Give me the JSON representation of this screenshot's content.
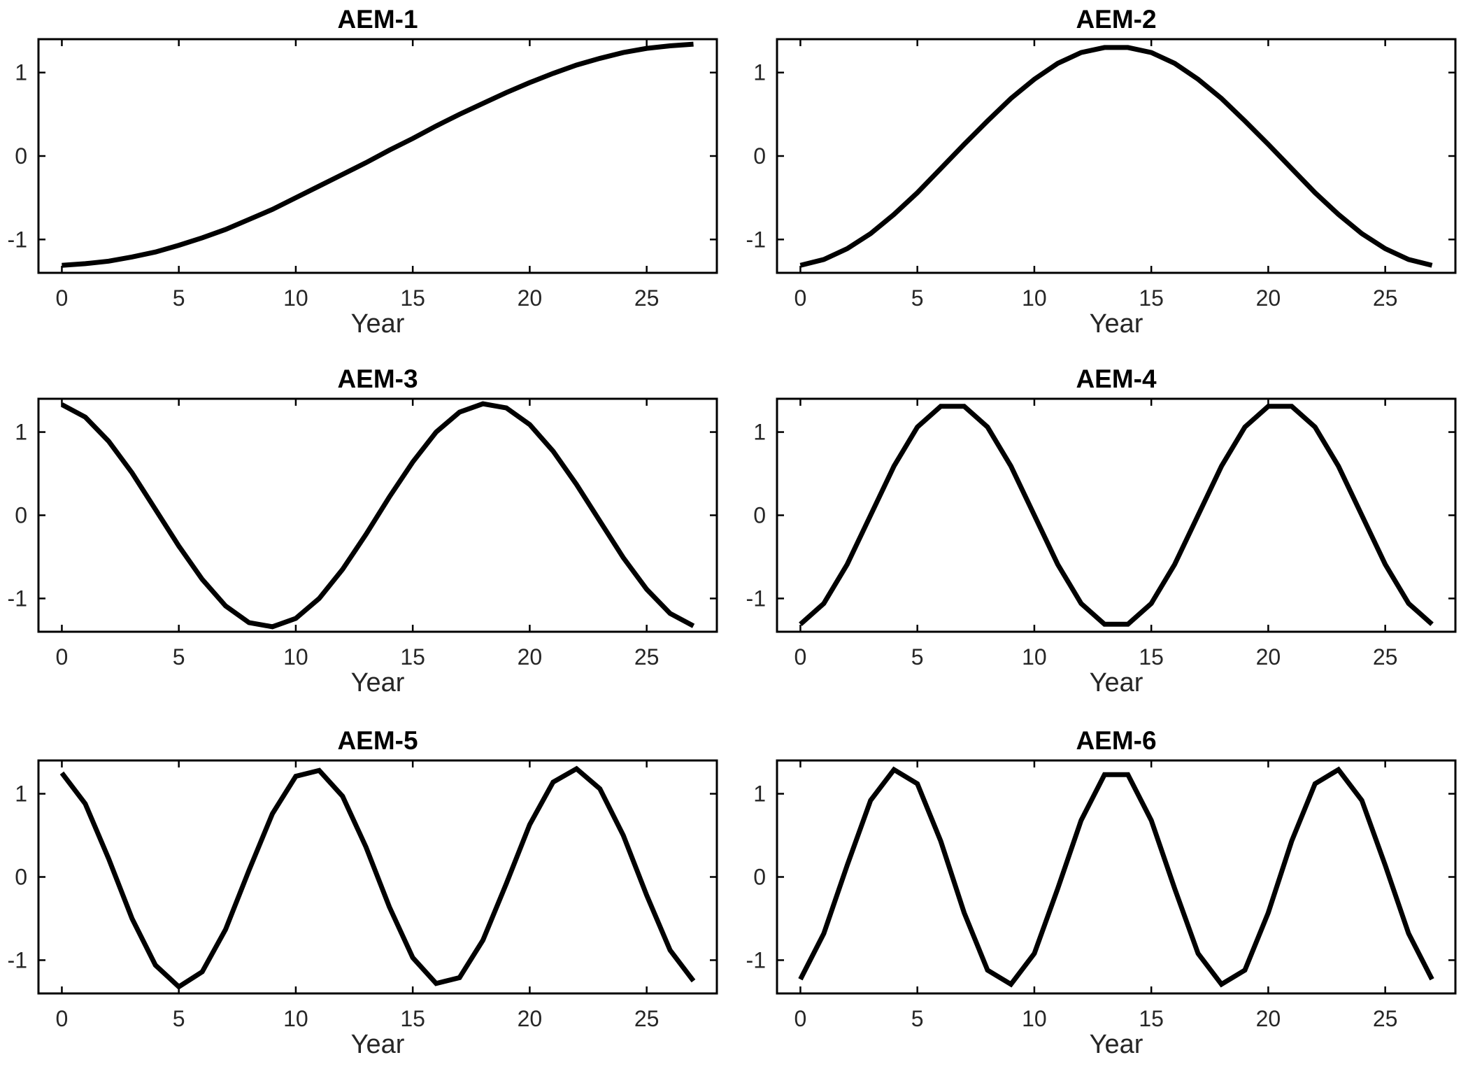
{
  "chart_data": [
    {
      "type": "line",
      "title": "AEM-1",
      "xlabel": "Year",
      "ylabel": "",
      "xlim": [
        -1,
        28
      ],
      "ylim": [
        -1.4,
        1.4
      ],
      "xticks": [
        0,
        5,
        10,
        15,
        20,
        25
      ],
      "xticklabels": [
        "0",
        "5",
        "10",
        "15",
        "20",
        "25"
      ],
      "yticks": [
        -1,
        0,
        1
      ],
      "yticklabels": [
        "-1",
        "0",
        "1"
      ],
      "grid": false,
      "x": [
        0,
        1,
        2,
        3,
        4,
        5,
        6,
        7,
        8,
        9,
        10,
        11,
        12,
        13,
        14,
        15,
        16,
        17,
        18,
        19,
        20,
        21,
        22,
        23,
        24,
        25,
        26,
        27
      ],
      "values": [
        -1.31,
        -1.29,
        -1.26,
        -1.21,
        -1.15,
        -1.07,
        -0.98,
        -0.88,
        -0.76,
        -0.64,
        -0.5,
        -0.36,
        -0.22,
        -0.08,
        0.07,
        0.21,
        0.36,
        0.5,
        0.63,
        0.76,
        0.88,
        0.99,
        1.09,
        1.17,
        1.24,
        1.29,
        1.32,
        1.34
      ]
    },
    {
      "type": "line",
      "title": "AEM-2",
      "xlabel": "Year",
      "ylabel": "",
      "xlim": [
        -1,
        28
      ],
      "ylim": [
        -1.4,
        1.4
      ],
      "xticks": [
        0,
        5,
        10,
        15,
        20,
        25
      ],
      "xticklabels": [
        "0",
        "5",
        "10",
        "15",
        "20",
        "25"
      ],
      "yticks": [
        -1,
        0,
        1
      ],
      "yticklabels": [
        "-1",
        "0",
        "1"
      ],
      "grid": false,
      "x": [
        0,
        1,
        2,
        3,
        4,
        5,
        6,
        7,
        8,
        9,
        10,
        11,
        12,
        13,
        14,
        15,
        16,
        17,
        18,
        19,
        20,
        21,
        22,
        23,
        24,
        25,
        26,
        27
      ],
      "values": [
        -1.31,
        -1.24,
        -1.11,
        -0.93,
        -0.7,
        -0.44,
        -0.15,
        0.14,
        0.42,
        0.69,
        0.92,
        1.11,
        1.24,
        1.3,
        1.3,
        1.24,
        1.11,
        0.92,
        0.69,
        0.42,
        0.14,
        -0.15,
        -0.44,
        -0.7,
        -0.93,
        -1.11,
        -1.24,
        -1.31
      ]
    },
    {
      "type": "line",
      "title": "AEM-3",
      "xlabel": "Year",
      "ylabel": "",
      "xlim": [
        -1,
        28
      ],
      "ylim": [
        -1.4,
        1.4
      ],
      "xticks": [
        0,
        5,
        10,
        15,
        20,
        25
      ],
      "xticklabels": [
        "0",
        "5",
        "10",
        "15",
        "20",
        "25"
      ],
      "yticks": [
        -1,
        0,
        1
      ],
      "yticklabels": [
        "-1",
        "0",
        "1"
      ],
      "grid": false,
      "x": [
        0,
        1,
        2,
        3,
        4,
        5,
        6,
        7,
        8,
        9,
        10,
        11,
        12,
        13,
        14,
        15,
        16,
        17,
        18,
        19,
        20,
        21,
        22,
        23,
        24,
        25,
        26,
        27
      ],
      "values": [
        1.33,
        1.18,
        0.89,
        0.51,
        0.07,
        -0.37,
        -0.77,
        -1.09,
        -1.29,
        -1.34,
        -1.24,
        -1.0,
        -0.65,
        -0.23,
        0.22,
        0.64,
        1.0,
        1.24,
        1.34,
        1.29,
        1.09,
        0.77,
        0.37,
        -0.07,
        -0.51,
        -0.89,
        -1.18,
        -1.33
      ]
    },
    {
      "type": "line",
      "title": "AEM-4",
      "xlabel": "Year",
      "ylabel": "",
      "xlim": [
        -1,
        28
      ],
      "ylim": [
        -1.4,
        1.4
      ],
      "xticks": [
        0,
        5,
        10,
        15,
        20,
        25
      ],
      "xticklabels": [
        "0",
        "5",
        "10",
        "15",
        "20",
        "25"
      ],
      "yticks": [
        -1,
        0,
        1
      ],
      "yticklabels": [
        "-1",
        "0",
        "1"
      ],
      "grid": false,
      "x": [
        0,
        1,
        2,
        3,
        4,
        5,
        6,
        7,
        8,
        9,
        10,
        11,
        12,
        13,
        14,
        15,
        16,
        17,
        18,
        19,
        20,
        21,
        22,
        23,
        24,
        25,
        26,
        27
      ],
      "values": [
        -1.31,
        -1.06,
        -0.59,
        0.0,
        0.59,
        1.06,
        1.31,
        1.31,
        1.06,
        0.59,
        0.0,
        -0.59,
        -1.06,
        -1.31,
        -1.31,
        -1.06,
        -0.59,
        0.0,
        0.59,
        1.06,
        1.31,
        1.31,
        1.06,
        0.59,
        0.0,
        -0.59,
        -1.06,
        -1.31
      ]
    },
    {
      "type": "line",
      "title": "AEM-5",
      "xlabel": "Year",
      "ylabel": "",
      "xlim": [
        -1,
        28
      ],
      "ylim": [
        -1.4,
        1.4
      ],
      "xticks": [
        0,
        5,
        10,
        15,
        20,
        25
      ],
      "xticklabels": [
        "0",
        "5",
        "10",
        "15",
        "20",
        "25"
      ],
      "yticks": [
        -1,
        0,
        1
      ],
      "yticklabels": [
        "-1",
        "0",
        "1"
      ],
      "grid": false,
      "x": [
        0,
        1,
        2,
        3,
        4,
        5,
        6,
        7,
        8,
        9,
        10,
        11,
        12,
        13,
        14,
        15,
        16,
        17,
        18,
        19,
        20,
        21,
        22,
        23,
        24,
        25,
        26,
        27
      ],
      "values": [
        1.25,
        0.88,
        0.22,
        -0.5,
        -1.06,
        -1.32,
        -1.14,
        -0.63,
        0.08,
        0.76,
        1.21,
        1.28,
        0.97,
        0.36,
        -0.36,
        -0.97,
        -1.28,
        -1.21,
        -0.76,
        -0.08,
        0.63,
        1.14,
        1.3,
        1.06,
        0.5,
        -0.22,
        -0.88,
        -1.25
      ]
    },
    {
      "type": "line",
      "title": "AEM-6",
      "xlabel": "Year",
      "ylabel": "",
      "xlim": [
        -1,
        28
      ],
      "ylim": [
        -1.4,
        1.4
      ],
      "xticks": [
        0,
        5,
        10,
        15,
        20,
        25
      ],
      "xticklabels": [
        "0",
        "5",
        "10",
        "15",
        "20",
        "25"
      ],
      "yticks": [
        -1,
        0,
        1
      ],
      "yticklabels": [
        "-1",
        "0",
        "1"
      ],
      "grid": false,
      "x": [
        0,
        1,
        2,
        3,
        4,
        5,
        6,
        7,
        8,
        9,
        10,
        11,
        12,
        13,
        14,
        15,
        16,
        17,
        18,
        19,
        20,
        21,
        22,
        23,
        24,
        25,
        26,
        27
      ],
      "values": [
        -1.23,
        -0.68,
        0.14,
        0.92,
        1.29,
        1.12,
        0.43,
        -0.43,
        -1.12,
        -1.29,
        -0.92,
        -0.14,
        0.68,
        1.23,
        1.23,
        0.68,
        -0.14,
        -0.92,
        -1.29,
        -1.12,
        -0.43,
        0.43,
        1.12,
        1.29,
        0.92,
        0.14,
        -0.68,
        -1.23
      ]
    }
  ]
}
